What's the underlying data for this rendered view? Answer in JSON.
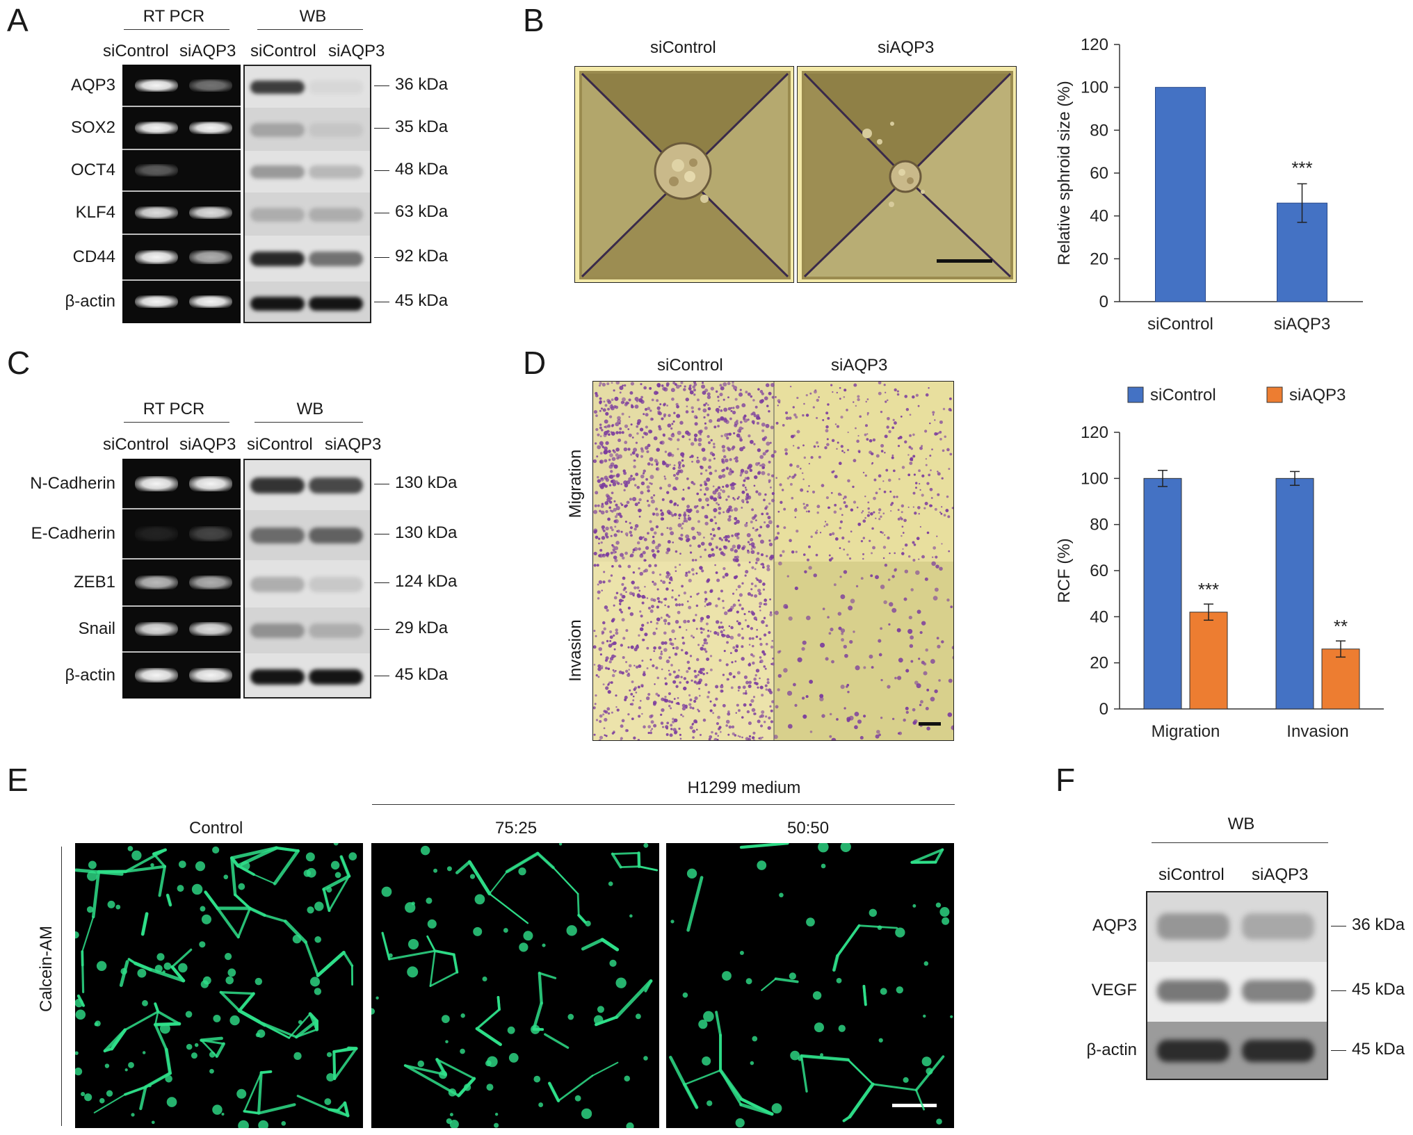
{
  "panels": {
    "A": {
      "label": "A",
      "rtpcr_header": "RT PCR",
      "wb_header": "WB",
      "lanes": [
        "siControl",
        "siAQP3",
        "siControl",
        "siAQP3"
      ],
      "rows": [
        {
          "gene": "AQP3",
          "kda": "36 kDa"
        },
        {
          "gene": "SOX2",
          "kda": "35 kDa"
        },
        {
          "gene": "OCT4",
          "kda": "48 kDa"
        },
        {
          "gene": "KLF4",
          "kda": "63 kDa"
        },
        {
          "gene": "CD44",
          "kda": "92 kDa"
        },
        {
          "gene": "β-actin",
          "kda": "45 kDa"
        }
      ]
    },
    "B": {
      "label": "B",
      "image_labels": [
        "siControl",
        "siAQP3"
      ]
    },
    "C": {
      "label": "C",
      "rtpcr_header": "RT PCR",
      "wb_header": "WB",
      "lanes": [
        "siControl",
        "siAQP3",
        "siControl",
        "siAQP3"
      ],
      "rows": [
        {
          "gene": "N-Cadherin",
          "kda": "130 kDa"
        },
        {
          "gene": "E-Cadherin",
          "kda": "130 kDa"
        },
        {
          "gene": "ZEB1",
          "kda": "124 kDa"
        },
        {
          "gene": "Snail",
          "kda": "29 kDa"
        },
        {
          "gene": "β-actin",
          "kda": "45 kDa"
        }
      ]
    },
    "D": {
      "label": "D",
      "image_labels": [
        "siControl",
        "siAQP3"
      ],
      "row_labels": [
        "Migration",
        "Invasion"
      ]
    },
    "E": {
      "label": "E",
      "group_header": "H1299 medium",
      "image_labels": [
        "Control",
        "75:25",
        "50:50"
      ],
      "side_label": "Calcein-AM"
    },
    "F": {
      "label": "F",
      "wb_header": "WB",
      "lanes": [
        "siControl",
        "siAQP3"
      ],
      "rows": [
        {
          "gene": "AQP3",
          "kda": "36 kDa"
        },
        {
          "gene": "VEGF",
          "kda": "45 kDa"
        },
        {
          "gene": "β-actin",
          "kda": "45 kDa"
        }
      ]
    }
  },
  "colors": {
    "blue": "#4472c4",
    "orange": "#ed7d31",
    "fluor_green": "#2fe08a",
    "stain_purple": "#7a3a9e",
    "spheroid_bg": "#8c8045"
  },
  "chart_data": [
    {
      "type": "bar",
      "panel": "B",
      "categories": [
        "siControl",
        "siAQP3"
      ],
      "values": [
        100,
        46
      ],
      "errors": [
        0,
        9
      ],
      "annotations": [
        "",
        "***"
      ],
      "ylabel": "Relative sphroid size (%)",
      "ylim": [
        0,
        120
      ],
      "yticks": [
        0,
        20,
        40,
        60,
        80,
        100,
        120
      ],
      "bar_color": "#4472c4"
    },
    {
      "type": "bar",
      "panel": "D",
      "categories": [
        "Migration",
        "Invasion"
      ],
      "series": [
        {
          "name": "siControl",
          "values": [
            100,
            100
          ],
          "errors": [
            3.5,
            3.0
          ],
          "annotations": [
            "",
            ""
          ],
          "color": "#4472c4"
        },
        {
          "name": "siAQP3",
          "values": [
            42,
            26
          ],
          "errors": [
            3.5,
            3.5
          ],
          "annotations": [
            "***",
            "**"
          ],
          "color": "#ed7d31"
        }
      ],
      "ylabel": "RCF (%)",
      "ylim": [
        0,
        120
      ],
      "yticks": [
        0,
        20,
        40,
        60,
        80,
        100,
        120
      ],
      "legend_position": "top"
    }
  ]
}
